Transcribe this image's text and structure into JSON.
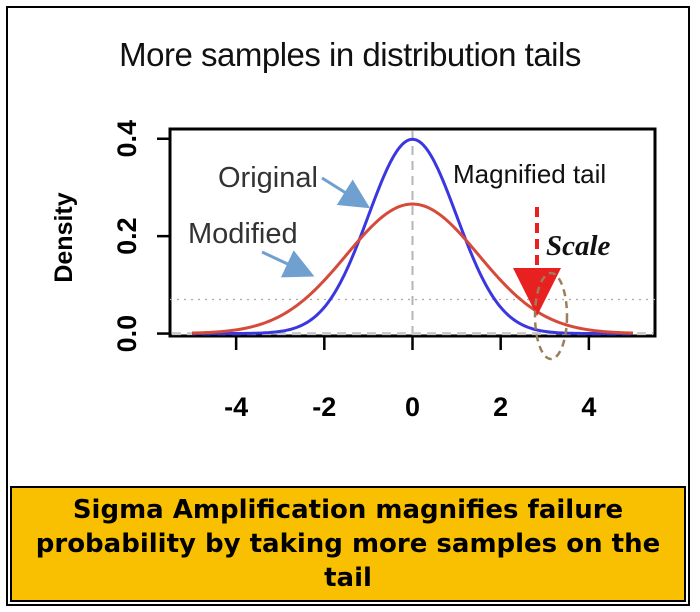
{
  "chart_data": {
    "type": "line",
    "title": "More samples in distribution tails",
    "xlabel": "",
    "ylabel": "Density",
    "xlim": [
      -5.5,
      5.5
    ],
    "ylim": [
      -0.005,
      0.42
    ],
    "x_ticks": [
      "-4",
      "-2",
      "0",
      "2",
      "4"
    ],
    "y_ticks": [
      "0.0",
      "0.2",
      "0.4"
    ],
    "series": [
      {
        "name": "Original",
        "mu": 0,
        "sigma": 1.0,
        "color": "#3b37e0"
      },
      {
        "name": "Modified",
        "mu": 0,
        "sigma": 1.5,
        "color": "#d64a3a"
      }
    ],
    "annotations": {
      "original_label": "Original",
      "modified_label": "Modified",
      "magnified_tail": "Magnified tail",
      "scale": "Scale"
    }
  },
  "caption": "Sigma Amplification magnifies failure probability by taking more samples on the tail",
  "colors": {
    "caption_bg": "#f8c000",
    "arrow_blue": "#6fa0d0",
    "arrow_red": "#e82020",
    "ellipse": "#9a7f5a"
  }
}
